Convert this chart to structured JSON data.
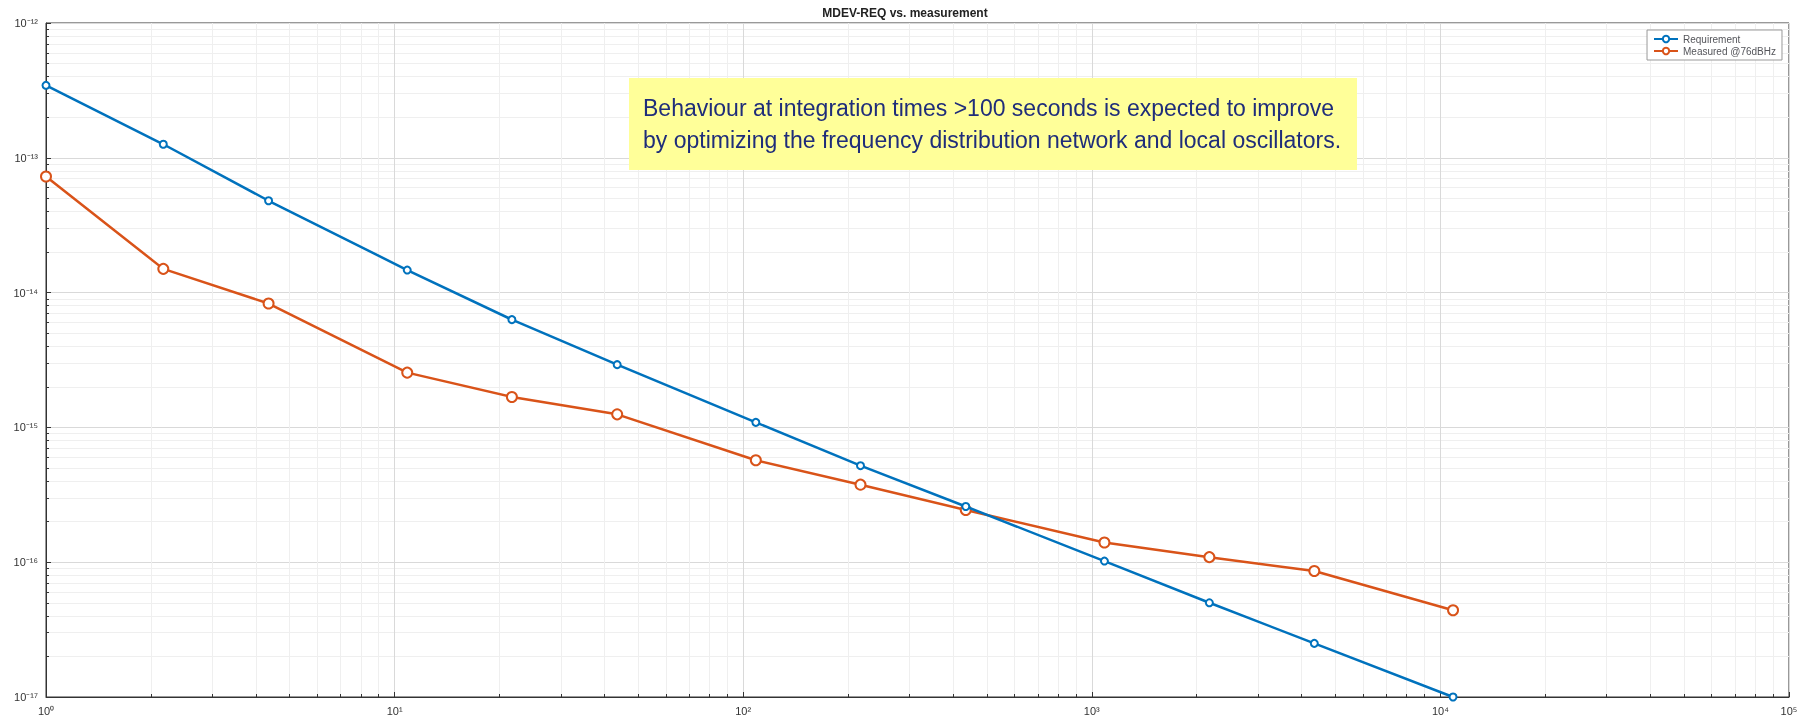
{
  "chart_data": {
    "type": "line",
    "title": "MDEV-REQ vs. measurement",
    "x": [
      1,
      2.17,
      4.35,
      10.87,
      21.7,
      43.5,
      108.7,
      217,
      435,
      1087,
      2174,
      4348,
      10870
    ],
    "series": [
      {
        "name": "Requirement",
        "color": "#0072bd",
        "values": [
          3.45e-13,
          1.26e-13,
          4.8e-14,
          1.47e-14,
          6.3e-15,
          2.92e-15,
          1.09e-15,
          5.2e-16,
          2.59e-16,
          1.02e-16,
          5e-17,
          2.5e-17,
          1e-17
        ]
      },
      {
        "name": "Measured @76dBHz",
        "color": "#d95319",
        "values": [
          7.27e-14,
          1.5e-14,
          8.3e-15,
          2.55e-15,
          1.68e-15,
          1.25e-15,
          5.7e-16,
          3.76e-16,
          2.44e-16,
          1.4e-16,
          1.09e-16,
          8.6e-17,
          4.4e-17
        ]
      }
    ],
    "log": "xy",
    "xlim": [
      1,
      100000
    ],
    "ylim": [
      1e-17,
      1e-12
    ],
    "xticks": [
      {
        "value": 1,
        "label": "10⁰"
      },
      {
        "value": 10,
        "label": "10¹"
      },
      {
        "value": 100,
        "label": "10²"
      },
      {
        "value": 1000,
        "label": "10³"
      },
      {
        "value": 10000,
        "label": "10⁴"
      },
      {
        "value": 100000,
        "label": "10⁵"
      }
    ],
    "yticks": [
      {
        "value": 1e-17,
        "label": "10⁻¹⁷"
      },
      {
        "value": 1e-16,
        "label": "10⁻¹⁶"
      },
      {
        "value": 1e-15,
        "label": "10⁻¹⁵"
      },
      {
        "value": 1e-14,
        "label": "10⁻¹⁴"
      },
      {
        "value": 1e-13,
        "label": "10⁻¹³"
      },
      {
        "value": 1e-12,
        "label": "10⁻¹²"
      }
    ],
    "annotations": [
      "Behaviour at integration times >100 seconds is expected to improve by optimizing the frequency distribution network and local oscillators."
    ],
    "grid": true,
    "legend": "top right",
    "marker": "circle",
    "line_style": "solid"
  }
}
